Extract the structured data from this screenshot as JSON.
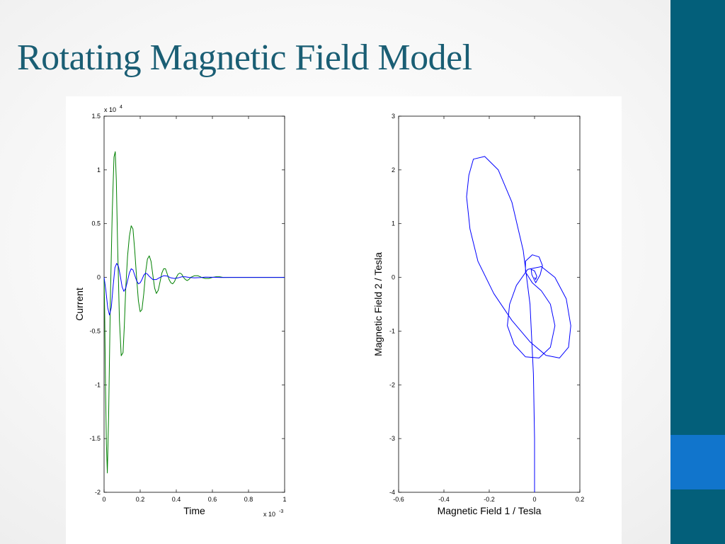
{
  "slide": {
    "title": "Rotating Magnetic Field Model",
    "colors": {
      "title": "#1a5e74",
      "sidebar": "#035f7a",
      "sidebar_accent": "#1175cc"
    }
  },
  "chart_data": [
    {
      "type": "line",
      "xlabel": "Time",
      "ylabel": "Current",
      "xlim": [
        0,
        1
      ],
      "ylim": [
        -2,
        1.5
      ],
      "x_exponent_base": "x 10",
      "x_exponent": "-3",
      "y_exponent_base": "x 10",
      "y_exponent": "4",
      "xticks": [
        "0",
        "0.2",
        "0.4",
        "0.6",
        "0.8",
        "1"
      ],
      "yticks": [
        "1.5",
        "1",
        "0.5",
        "0",
        "-0.5",
        "-1",
        "-1.5",
        "-2"
      ],
      "grid": false,
      "series": [
        {
          "color": "#008000",
          "x": [
            0,
            0.003,
            0.008,
            0.013,
            0.018,
            0.025,
            0.035,
            0.045,
            0.055,
            0.062,
            0.068,
            0.075,
            0.085,
            0.095,
            0.105,
            0.112,
            0.12,
            0.13,
            0.14,
            0.15,
            0.16,
            0.17,
            0.18,
            0.19,
            0.2,
            0.21,
            0.22,
            0.23,
            0.24,
            0.25,
            0.26,
            0.27,
            0.28,
            0.29,
            0.3,
            0.31,
            0.32,
            0.33,
            0.34,
            0.35,
            0.36,
            0.37,
            0.38,
            0.39,
            0.4,
            0.41,
            0.42,
            0.43,
            0.44,
            0.45,
            0.46,
            0.47,
            0.48,
            0.5,
            0.52,
            0.54,
            0.56,
            0.58,
            0.6,
            0.62,
            0.64,
            0.66,
            0.7,
            0.75,
            0.8,
            0.9,
            1.0
          ],
          "values": [
            0,
            -0.3,
            -1.0,
            -1.55,
            -1.82,
            -1.3,
            -0.2,
            0.6,
            1.12,
            1.17,
            0.9,
            0.3,
            -0.4,
            -0.73,
            -0.7,
            -0.45,
            -0.1,
            0.2,
            0.38,
            0.48,
            0.45,
            0.25,
            0.0,
            -0.22,
            -0.32,
            -0.3,
            -0.15,
            0.05,
            0.17,
            0.2,
            0.15,
            0.02,
            -0.1,
            -0.15,
            -0.12,
            -0.04,
            0.04,
            0.08,
            0.08,
            0.03,
            -0.02,
            -0.05,
            -0.06,
            -0.04,
            0.0,
            0.03,
            0.04,
            0.03,
            0.0,
            -0.02,
            -0.03,
            -0.02,
            0.0,
            0.015,
            0.015,
            0.0,
            -0.01,
            -0.01,
            0.0,
            0.005,
            0.005,
            0.0,
            0.0,
            0.0,
            0.0,
            0.0,
            0.0
          ]
        },
        {
          "color": "#0000ff",
          "x": [
            0,
            0.01,
            0.02,
            0.03,
            0.04,
            0.05,
            0.06,
            0.07,
            0.08,
            0.09,
            0.1,
            0.11,
            0.12,
            0.13,
            0.14,
            0.15,
            0.16,
            0.17,
            0.18,
            0.19,
            0.2,
            0.21,
            0.22,
            0.23,
            0.24,
            0.25,
            0.27,
            0.29,
            0.31,
            0.33,
            0.35,
            0.37,
            0.39,
            0.41,
            0.43,
            0.45,
            0.47,
            0.5,
            0.53,
            0.56,
            0.6,
            0.65,
            0.7,
            0.75,
            0.8,
            0.9,
            1.0
          ],
          "values": [
            0,
            -0.12,
            -0.28,
            -0.35,
            -0.28,
            -0.08,
            0.09,
            0.13,
            0.1,
            0.01,
            -0.09,
            -0.13,
            -0.1,
            -0.03,
            0.04,
            0.08,
            0.07,
            0.02,
            -0.03,
            -0.06,
            -0.05,
            -0.02,
            0.02,
            0.04,
            0.03,
            0.01,
            -0.02,
            -0.02,
            0.0,
            0.015,
            0.012,
            -0.005,
            -0.01,
            -0.005,
            0.005,
            0.006,
            0.0,
            -0.004,
            -0.002,
            0.002,
            0.001,
            -0.001,
            0.0,
            0.0,
            0.0,
            0.0,
            0.0
          ]
        }
      ]
    },
    {
      "type": "line",
      "xlabel": "Magnetic Field 1 / Tesla",
      "ylabel": "Magnetic Field 2 / Tesla",
      "xlim": [
        -0.6,
        0.2
      ],
      "ylim": [
        -4,
        3
      ],
      "xticks": [
        "-0.6",
        "-0.4",
        "-0.2",
        "0",
        "0.2"
      ],
      "yticks": [
        "3",
        "2",
        "1",
        "0",
        "-1",
        "-2",
        "-3",
        "-4"
      ],
      "grid": false,
      "series": [
        {
          "color": "#0000ff",
          "x": [
            0,
            0,
            -0.005,
            -0.02,
            -0.05,
            -0.1,
            -0.16,
            -0.22,
            -0.27,
            -0.29,
            -0.3,
            -0.285,
            -0.25,
            -0.18,
            -0.1,
            -0.02,
            0.05,
            0.11,
            0.15,
            0.16,
            0.14,
            0.09,
            0.03,
            -0.03,
            -0.08,
            -0.11,
            -0.12,
            -0.09,
            -0.04,
            0.02,
            0.07,
            0.09,
            0.07,
            0.03,
            -0.01,
            -0.04,
            -0.04,
            -0.01,
            0.02,
            0.035,
            0.025,
            0.005,
            -0.012,
            -0.015,
            0.0,
            0.01,
            0.005,
            0.0
          ],
          "values": [
            -4.0,
            -3.0,
            -1.8,
            -0.5,
            0.5,
            1.4,
            2.0,
            2.25,
            2.2,
            1.9,
            1.5,
            0.9,
            0.3,
            -0.3,
            -0.8,
            -1.2,
            -1.45,
            -1.5,
            -1.3,
            -0.9,
            -0.4,
            0.0,
            0.2,
            0.15,
            -0.15,
            -0.5,
            -0.9,
            -1.25,
            -1.48,
            -1.5,
            -1.3,
            -0.9,
            -0.5,
            -0.25,
            -0.1,
            0.1,
            0.3,
            0.42,
            0.38,
            0.22,
            0.05,
            -0.1,
            0.05,
            0.15,
            0.12,
            0.02,
            -0.04,
            0.0
          ]
        }
      ]
    }
  ]
}
